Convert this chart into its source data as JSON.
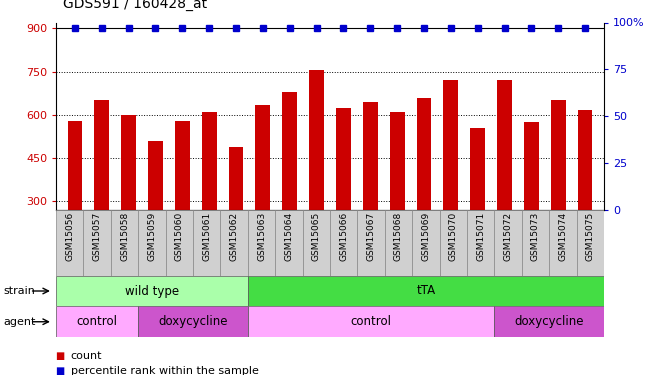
{
  "title": "GDS591 / 160428_at",
  "samples": [
    "GSM15056",
    "GSM15057",
    "GSM15058",
    "GSM15059",
    "GSM15060",
    "GSM15061",
    "GSM15062",
    "GSM15063",
    "GSM15064",
    "GSM15065",
    "GSM15066",
    "GSM15067",
    "GSM15068",
    "GSM15069",
    "GSM15070",
    "GSM15071",
    "GSM15072",
    "GSM15073",
    "GSM15074",
    "GSM15075"
  ],
  "counts": [
    580,
    650,
    600,
    510,
    580,
    610,
    490,
    635,
    680,
    755,
    625,
    645,
    610,
    660,
    720,
    555,
    720,
    575,
    650,
    615
  ],
  "percentile": [
    97,
    97,
    97,
    97,
    97,
    97,
    97,
    97,
    97,
    97,
    97,
    97,
    97,
    97,
    97,
    97,
    97,
    97,
    97,
    97
  ],
  "bar_color": "#cc0000",
  "dot_color": "#0000cc",
  "ylim_left": [
    270,
    920
  ],
  "ylim_right": [
    0,
    100
  ],
  "yticks_left": [
    300,
    450,
    600,
    750,
    900
  ],
  "yticks_right": [
    0,
    25,
    50,
    75,
    100
  ],
  "strain_groups": [
    {
      "label": "wild type",
      "start": 0,
      "end": 7,
      "color": "#aaffaa"
    },
    {
      "label": "tTA",
      "start": 7,
      "end": 20,
      "color": "#44dd44"
    }
  ],
  "agent_groups": [
    {
      "label": "control",
      "start": 0,
      "end": 3,
      "color": "#ffaaff"
    },
    {
      "label": "doxycycline",
      "start": 3,
      "end": 7,
      "color": "#cc55cc"
    },
    {
      "label": "control",
      "start": 7,
      "end": 16,
      "color": "#ffaaff"
    },
    {
      "label": "doxycycline",
      "start": 16,
      "end": 20,
      "color": "#cc55cc"
    }
  ],
  "legend_count_color": "#cc0000",
  "legend_dot_color": "#0000cc",
  "xtick_bg": "#d0d0d0"
}
